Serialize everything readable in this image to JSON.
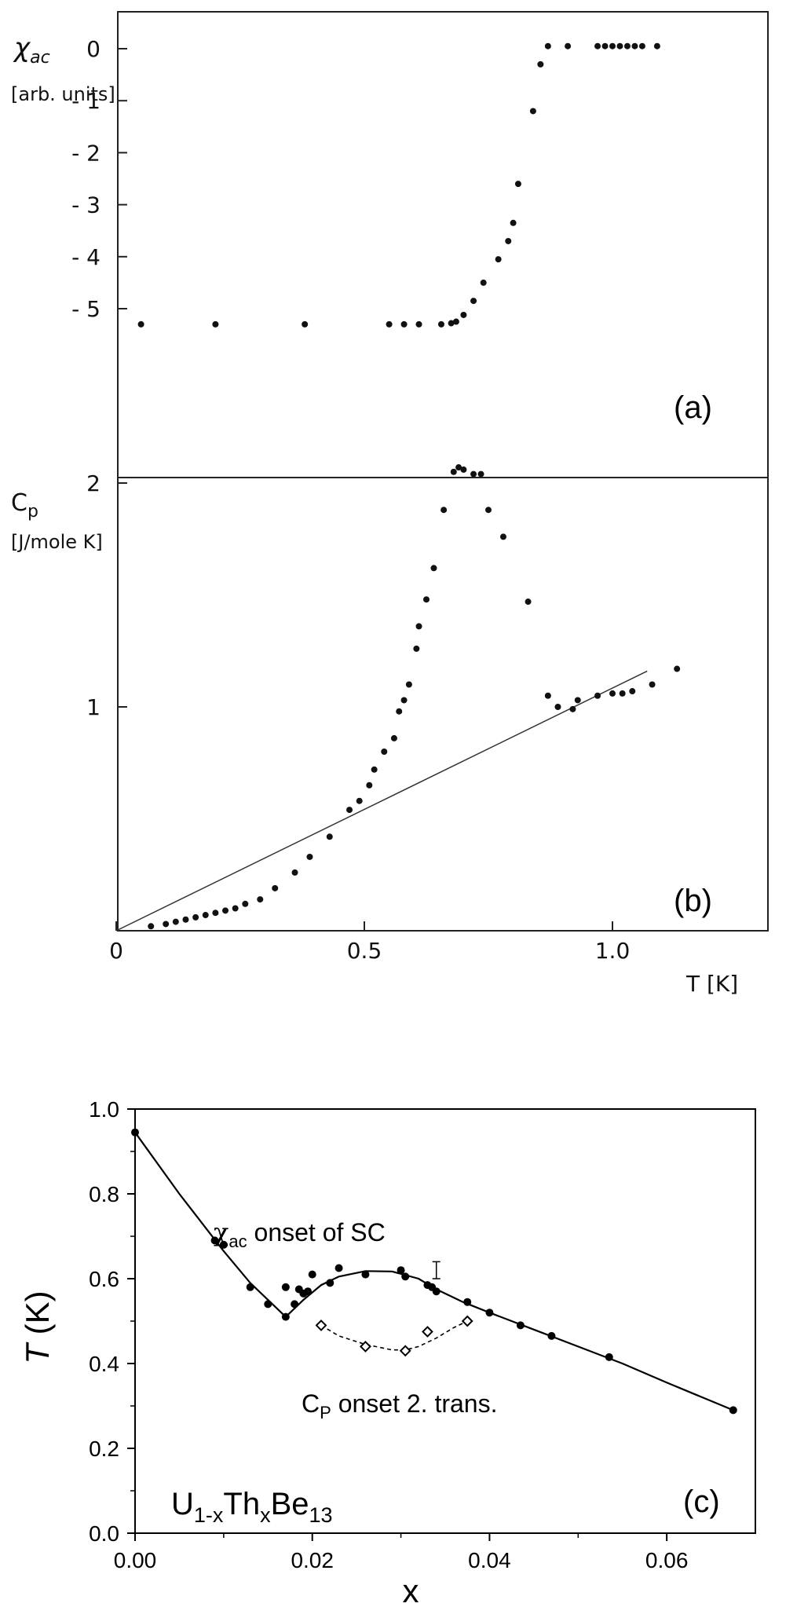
{
  "chart_data": [
    {
      "panel": "a",
      "type": "scatter",
      "panel_label": "(a)",
      "ylabel_symbol": "χ",
      "ylabel_sub": "ac",
      "ylabel_units": "[arb. units]",
      "xlim": [
        0,
        1.2
      ],
      "ylim": [
        -5.5,
        0.5
      ],
      "yticks": [
        0,
        -1,
        -2,
        -3,
        -4,
        -5
      ],
      "ytick_labels": [
        "0",
        "- 1",
        "- 2",
        "- 3",
        "- 4",
        "- 5"
      ],
      "series": [
        {
          "points": [
            [
              0.05,
              -5.3
            ],
            [
              0.2,
              -5.3
            ],
            [
              0.38,
              -5.3
            ],
            [
              0.55,
              -5.3
            ],
            [
              0.58,
              -5.3
            ],
            [
              0.61,
              -5.3
            ],
            [
              0.655,
              -5.3
            ],
            [
              0.675,
              -5.28
            ],
            [
              0.685,
              -5.25
            ],
            [
              0.7,
              -5.12
            ],
            [
              0.72,
              -4.85
            ],
            [
              0.74,
              -4.5
            ],
            [
              0.77,
              -4.05
            ],
            [
              0.79,
              -3.7
            ],
            [
              0.8,
              -3.35
            ],
            [
              0.81,
              -2.6
            ],
            [
              0.84,
              -1.2
            ],
            [
              0.855,
              -0.3
            ],
            [
              0.87,
              0.05
            ],
            [
              0.91,
              0.05
            ],
            [
              0.97,
              0.05
            ],
            [
              0.985,
              0.05
            ],
            [
              1.0,
              0.05
            ],
            [
              1.015,
              0.05
            ],
            [
              1.03,
              0.05
            ],
            [
              1.045,
              0.05
            ],
            [
              1.06,
              0.05
            ],
            [
              1.09,
              0.05
            ]
          ]
        }
      ]
    },
    {
      "panel": "b",
      "type": "scatter",
      "panel_label": "(b)",
      "ylabel_symbol": "C",
      "ylabel_sub": "p",
      "ylabel_units": "[J/mole K]",
      "xlabel": "T  [K]",
      "xlim": [
        0,
        1.2
      ],
      "ylim": [
        0,
        2.5
      ],
      "xticks": [
        0,
        0.5,
        1.0
      ],
      "xtick_labels": [
        "0",
        "0.5",
        "1.0"
      ],
      "yticks": [
        1,
        2
      ],
      "ytick_labels": [
        "1",
        "2"
      ],
      "series": [
        {
          "points": [
            [
              0.07,
              0.02
            ],
            [
              0.1,
              0.03
            ],
            [
              0.12,
              0.04
            ],
            [
              0.14,
              0.05
            ],
            [
              0.16,
              0.06
            ],
            [
              0.18,
              0.07
            ],
            [
              0.2,
              0.08
            ],
            [
              0.22,
              0.09
            ],
            [
              0.24,
              0.1
            ],
            [
              0.26,
              0.12
            ],
            [
              0.29,
              0.14
            ],
            [
              0.32,
              0.19
            ],
            [
              0.36,
              0.26
            ],
            [
              0.39,
              0.33
            ],
            [
              0.43,
              0.42
            ],
            [
              0.47,
              0.54
            ],
            [
              0.49,
              0.58
            ],
            [
              0.51,
              0.65
            ],
            [
              0.52,
              0.72
            ],
            [
              0.54,
              0.8
            ],
            [
              0.56,
              0.86
            ],
            [
              0.57,
              0.98
            ],
            [
              0.58,
              1.03
            ],
            [
              0.59,
              1.1
            ],
            [
              0.605,
              1.26
            ],
            [
              0.61,
              1.36
            ],
            [
              0.625,
              1.48
            ],
            [
              0.64,
              1.62
            ],
            [
              0.66,
              1.88
            ],
            [
              0.68,
              2.05
            ],
            [
              0.69,
              2.07
            ],
            [
              0.7,
              2.06
            ],
            [
              0.72,
              2.04
            ],
            [
              0.735,
              2.04
            ],
            [
              0.75,
              1.88
            ],
            [
              0.78,
              1.76
            ],
            [
              0.83,
              1.47
            ],
            [
              0.87,
              1.05
            ],
            [
              0.89,
              1.0
            ],
            [
              0.92,
              0.99
            ],
            [
              0.93,
              1.03
            ],
            [
              0.97,
              1.05
            ],
            [
              1.0,
              1.06
            ],
            [
              1.02,
              1.06
            ],
            [
              1.04,
              1.07
            ],
            [
              1.08,
              1.1
            ],
            [
              1.13,
              1.17
            ]
          ]
        },
        {
          "type": "line",
          "points": [
            [
              0.0,
              0.0
            ],
            [
              1.07,
              1.16
            ]
          ]
        }
      ]
    },
    {
      "panel": "c",
      "type": "scatter",
      "panel_label": "(c)",
      "xlabel": "x",
      "ylabel": "T",
      "ylabel_unit": "(K)",
      "compound": {
        "a": "U",
        "a_sub": "1-x",
        "b": "Th",
        "b_sub": "x",
        "c": "Be",
        "c_sub": "13"
      },
      "annotations": [
        {
          "symbol": "χ",
          "sub": "ac",
          "text": " onset of SC"
        },
        {
          "symbol": "C",
          "sub": "P",
          "text": " onset 2. trans."
        }
      ],
      "xlim": [
        0,
        0.07
      ],
      "ylim": [
        0,
        1.0
      ],
      "xticks": [
        0,
        0.02,
        0.04,
        0.06
      ],
      "xtick_labels": [
        "0.00",
        "0.02",
        "0.04",
        "0.06"
      ],
      "yticks": [
        0,
        0.2,
        0.4,
        0.6,
        0.8,
        1.0
      ],
      "ytick_labels": [
        "0.0",
        "0.2",
        "0.4",
        "0.6",
        "0.8",
        "1.0"
      ],
      "series": [
        {
          "marker": "filled-circle",
          "points": [
            [
              0.0,
              0.945
            ],
            [
              0.009,
              0.69
            ],
            [
              0.01,
              0.68
            ],
            [
              0.013,
              0.58
            ],
            [
              0.015,
              0.54
            ],
            [
              0.017,
              0.51
            ],
            [
              0.017,
              0.58
            ],
            [
              0.018,
              0.54
            ],
            [
              0.0185,
              0.575
            ],
            [
              0.019,
              0.565
            ],
            [
              0.0195,
              0.57
            ],
            [
              0.02,
              0.61
            ],
            [
              0.022,
              0.59
            ],
            [
              0.023,
              0.625
            ],
            [
              0.026,
              0.61
            ],
            [
              0.03,
              0.62
            ],
            [
              0.0305,
              0.605
            ],
            [
              0.033,
              0.585
            ],
            [
              0.0335,
              0.58
            ],
            [
              0.034,
              0.57
            ],
            [
              0.0375,
              0.545
            ],
            [
              0.04,
              0.52
            ],
            [
              0.0435,
              0.49
            ],
            [
              0.047,
              0.465
            ],
            [
              0.0535,
              0.415
            ],
            [
              0.0675,
              0.29
            ]
          ]
        },
        {
          "marker": "open-diamond",
          "points": [
            [
              0.021,
              0.49
            ],
            [
              0.026,
              0.44
            ],
            [
              0.0305,
              0.43
            ],
            [
              0.033,
              0.475
            ],
            [
              0.0375,
              0.5
            ]
          ]
        },
        {
          "type": "line",
          "style": "solid",
          "points": [
            [
              0.0,
              0.945
            ],
            [
              0.005,
              0.8
            ],
            [
              0.01,
              0.665
            ],
            [
              0.013,
              0.59
            ],
            [
              0.017,
              0.51
            ],
            [
              0.019,
              0.55
            ],
            [
              0.021,
              0.585
            ],
            [
              0.023,
              0.605
            ],
            [
              0.026,
              0.618
            ],
            [
              0.029,
              0.617
            ],
            [
              0.032,
              0.6
            ],
            [
              0.034,
              0.575
            ],
            [
              0.037,
              0.545
            ],
            [
              0.04,
              0.52
            ],
            [
              0.045,
              0.48
            ],
            [
              0.05,
              0.44
            ],
            [
              0.055,
              0.4
            ],
            [
              0.06,
              0.355
            ],
            [
              0.0675,
              0.29
            ]
          ]
        },
        {
          "type": "line",
          "style": "dashed",
          "points": [
            [
              0.021,
              0.49
            ],
            [
              0.023,
              0.465
            ],
            [
              0.026,
              0.445
            ],
            [
              0.029,
              0.432
            ],
            [
              0.0305,
              0.432
            ],
            [
              0.032,
              0.44
            ],
            [
              0.034,
              0.46
            ],
            [
              0.036,
              0.485
            ],
            [
              0.0375,
              0.5
            ]
          ]
        }
      ]
    }
  ]
}
